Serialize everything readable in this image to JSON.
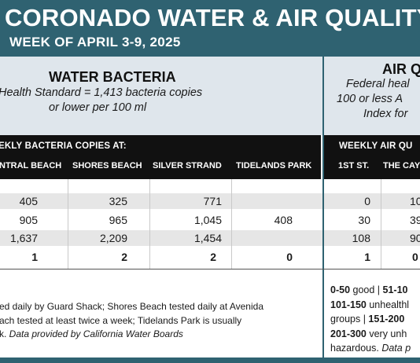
{
  "banner": {
    "title": "CORONADO WATER & AIR QUALITY R",
    "subtitle": "WEEK OF APRIL 3-9, 2025"
  },
  "water": {
    "title": "WATER BACTERIA",
    "standard_line1": "Health Standard  = 1,413 bacteria copies",
    "standard_line2": "or lower per 100 ml",
    "bar_label": "EKLY BACTERIA COPIES AT:",
    "columns": [
      "NTRAL BEACH",
      "SHORES BEACH",
      "SILVER STRAND",
      "TIDELANDS PARK"
    ],
    "rows": [
      [
        "405",
        "325",
        "771",
        ""
      ],
      [
        "905",
        "965",
        "1,045",
        "408"
      ],
      [
        "1,637",
        "2,209",
        "1,454",
        ""
      ],
      [
        "1",
        "2",
        "2",
        "0"
      ]
    ],
    "note_line1": "ed daily by Guard Shack; Shores Beach tested daily at Avenida",
    "note_line2": "ach tested at least twice a week; Tidelands Park is usually",
    "note_line3_plain": "k. ",
    "note_line3_italic": "Data provided by California Water Boards"
  },
  "air": {
    "title": "AIR Q",
    "standard_line1": "Federal heal",
    "standard_line2": "100 or less A",
    "standard_line3": "Index for",
    "bar_label": "WEEKLY AIR QU",
    "columns": [
      "1ST ST.",
      "THE CAY"
    ],
    "rows": [
      [
        "0",
        "10"
      ],
      [
        "30",
        "39"
      ],
      [
        "108",
        "90"
      ],
      [
        "1",
        "0"
      ]
    ],
    "scale_l1_b": "0-50",
    "scale_l1_t": " good | ",
    "scale_l1_b2": "51-10",
    "scale_l2_b": "101-150",
    "scale_l2_t": " unhealthl",
    "scale_l3_t": "groups | ",
    "scale_l3_b": "151-200",
    "scale_l4_b": "201-300",
    "scale_l4_t": " very unh",
    "scale_l5_t": "hazardous. ",
    "scale_l5_i": "Data p"
  },
  "colors": {
    "banner": "#2f6271",
    "panel": "#dfe6ec",
    "bar": "#111111",
    "row_shade": "#e6e6e6"
  }
}
